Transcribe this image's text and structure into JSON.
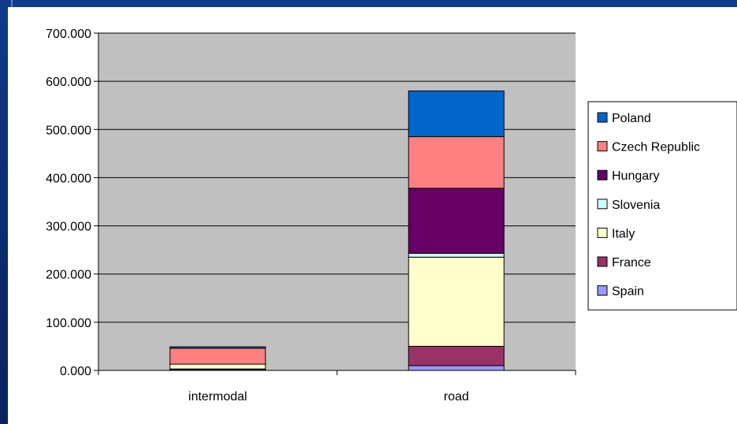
{
  "chart_data": {
    "type": "bar",
    "stacked": true,
    "categories": [
      "intermodal",
      "road"
    ],
    "y_ticks": [
      "0.000",
      "100.000",
      "200.000",
      "300.000",
      "400.000",
      "500.000",
      "600.000",
      "700.000"
    ],
    "ylim": [
      0,
      700
    ],
    "grid": true,
    "legend_position": "right",
    "series": [
      {
        "name": "Spain",
        "color": "#9999ff",
        "values": [
          2,
          10
        ]
      },
      {
        "name": "France",
        "color": "#993366",
        "values": [
          1,
          40
        ]
      },
      {
        "name": "Italy",
        "color": "#ffffcc",
        "values": [
          10,
          185
        ]
      },
      {
        "name": "Slovenia",
        "color": "#ccffff",
        "values": [
          0,
          8
        ]
      },
      {
        "name": "Hungary",
        "color": "#660066",
        "values": [
          0,
          135
        ]
      },
      {
        "name": "Czech Republic",
        "color": "#ff8080",
        "values": [
          33,
          107
        ]
      },
      {
        "name": "Poland",
        "color": "#0066cc",
        "values": [
          3,
          95
        ]
      }
    ],
    "plot_background": "#c0c0c0"
  }
}
